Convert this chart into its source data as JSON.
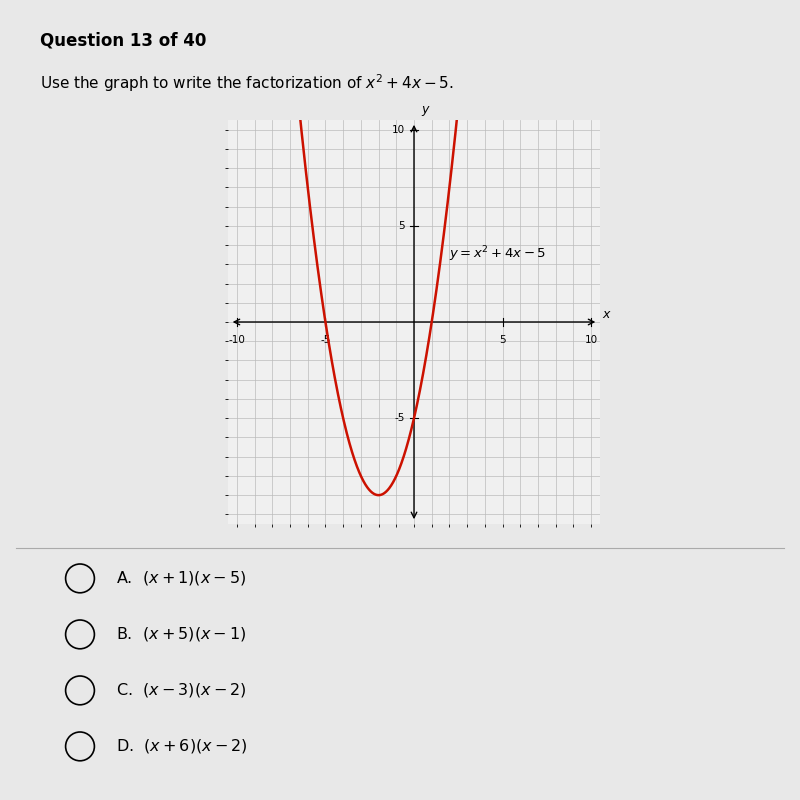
{
  "title": "Question 13 of 40",
  "subtitle": "Use the graph to write the factorization of $x^2 + 4x - 5$.",
  "equation_label": "$y = x^2 + 4x - 5$",
  "xlim": [
    -10.5,
    10.5
  ],
  "ylim": [
    -10.5,
    10.5
  ],
  "xtick_vals": [
    -10,
    -5,
    5,
    10
  ],
  "ytick_vals": [
    -5,
    5,
    10
  ],
  "curve_color": "#cc1100",
  "curve_linewidth": 1.8,
  "grid_color": "#bbbbbb",
  "grid_linewidth": 0.5,
  "background_color": "#e8e8e8",
  "plot_bg_color": "#f0f0f0",
  "choices": [
    "A.  $(x+1)(x-5)$",
    "B.  $(x+5)(x-1)$",
    "C.  $(x-3)(x-2)$",
    "D.  $(x+6)(x-2)$"
  ]
}
